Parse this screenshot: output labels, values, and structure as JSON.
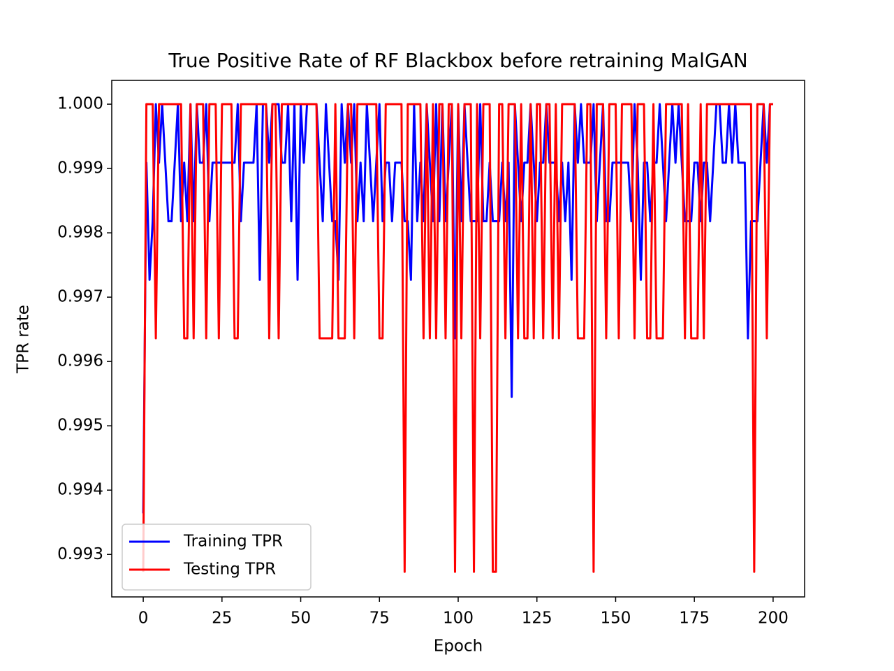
{
  "chart_data": {
    "type": "line",
    "title": "True Positive Rate of RF Blackbox before retraining MalGAN",
    "x_label": "Epoch",
    "y_label": "TPR rate",
    "xlim": [
      -10,
      210
    ],
    "xticks": [
      0,
      25,
      50,
      75,
      100,
      125,
      150,
      175,
      200
    ],
    "ylim": [
      0.99234,
      1.00037
    ],
    "yticks": [
      0.993,
      0.994,
      0.995,
      0.996,
      0.997,
      0.998,
      0.999,
      {
        "value": 1.0,
        "label": "1.000"
      }
    ],
    "legend": "lower left",
    "x": [
      0,
      1,
      2,
      3,
      4,
      5,
      6,
      7,
      8,
      9,
      10,
      11,
      12,
      13,
      14,
      15,
      16,
      17,
      18,
      19,
      20,
      21,
      22,
      23,
      24,
      25,
      26,
      27,
      28,
      29,
      30,
      31,
      32,
      33,
      34,
      35,
      36,
      37,
      38,
      39,
      40,
      41,
      42,
      43,
      44,
      45,
      46,
      47,
      48,
      49,
      50,
      51,
      52,
      53,
      54,
      55,
      56,
      57,
      58,
      59,
      60,
      61,
      62,
      63,
      64,
      65,
      66,
      67,
      68,
      69,
      70,
      71,
      72,
      73,
      74,
      75,
      76,
      77,
      78,
      79,
      80,
      81,
      82,
      83,
      84,
      85,
      86,
      87,
      88,
      89,
      90,
      91,
      92,
      93,
      94,
      95,
      96,
      97,
      98,
      99,
      100,
      101,
      102,
      103,
      104,
      105,
      106,
      107,
      108,
      109,
      110,
      111,
      112,
      113,
      114,
      115,
      116,
      117,
      118,
      119,
      120,
      121,
      122,
      123,
      124,
      125,
      126,
      127,
      128,
      129,
      130,
      131,
      132,
      133,
      134,
      135,
      136,
      137,
      138,
      139,
      140,
      141,
      142,
      143,
      144,
      145,
      146,
      147,
      148,
      149,
      150,
      151,
      152,
      153,
      154,
      155,
      156,
      157,
      158,
      159,
      160,
      161,
      162,
      163,
      164,
      165,
      166,
      167,
      168,
      169,
      170,
      171,
      172,
      173,
      174,
      175,
      176,
      177,
      178,
      179,
      180,
      181,
      182,
      183,
      184,
      185,
      186,
      187,
      188,
      189,
      190,
      191,
      192,
      193,
      194,
      195,
      196,
      197,
      198,
      199,
      200
    ],
    "series": [
      {
        "name": "Training TPR",
        "color": "#0000ff",
        "values": [
          0.99364,
          0.99909,
          0.99727,
          0.99818,
          1,
          0.99909,
          1,
          0.99909,
          0.99818,
          0.99818,
          0.99909,
          1,
          0.99818,
          0.99909,
          0.99818,
          1,
          0.99818,
          1,
          0.99909,
          0.99909,
          1,
          0.99818,
          0.99909,
          0.99909,
          0.99909,
          0.99909,
          0.99909,
          0.99909,
          0.99909,
          0.99909,
          1,
          0.99818,
          0.99909,
          0.99909,
          0.99909,
          0.99909,
          1,
          0.99727,
          1,
          1,
          0.99909,
          1,
          1,
          1,
          0.99909,
          0.99909,
          1,
          0.99818,
          1,
          0.99727,
          1,
          0.99909,
          1,
          1,
          1,
          1,
          0.99909,
          0.99818,
          1,
          0.99909,
          0.99818,
          0.99818,
          0.99727,
          1,
          0.99909,
          1,
          0.99909,
          1,
          0.99818,
          0.99909,
          0.99818,
          1,
          0.99909,
          0.99818,
          0.99909,
          1,
          0.99818,
          0.99909,
          0.99909,
          0.99818,
          0.99909,
          0.99909,
          0.99909,
          0.99818,
          0.99818,
          0.99727,
          1,
          0.99818,
          0.99909,
          0.99818,
          1,
          0.99909,
          0.99818,
          1,
          0.99818,
          1,
          0.99818,
          0.99909,
          1,
          0.99636,
          1,
          0.99818,
          1,
          0.99909,
          0.99818,
          0.99818,
          0.99818,
          1,
          0.99818,
          0.99818,
          0.99909,
          0.99818,
          0.99818,
          0.99818,
          0.99909,
          0.99818,
          0.99909,
          0.99545,
          1,
          0.99909,
          0.99818,
          0.99909,
          0.99909,
          1,
          0.99909,
          0.99818,
          0.99909,
          0.99909,
          1,
          0.99909,
          0.99909,
          0.99909,
          0.99818,
          0.99909,
          0.99818,
          0.99909,
          0.99727,
          1,
          0.99909,
          1,
          0.99909,
          0.99909,
          0.99909,
          1,
          0.99818,
          0.99909,
          1,
          0.99818,
          0.99818,
          0.99909,
          0.99909,
          0.99909,
          0.99909,
          0.99909,
          0.99909,
          0.99818,
          1,
          0.99909,
          0.99727,
          0.99909,
          0.99909,
          0.99818,
          0.99909,
          0.99909,
          1,
          0.99909,
          0.99818,
          0.99909,
          1,
          0.99909,
          1,
          0.99909,
          0.99818,
          0.99818,
          0.99818,
          0.99909,
          0.99909,
          0.99818,
          0.99909,
          0.99909,
          0.99818,
          0.99909,
          1,
          1,
          0.99909,
          0.99909,
          1,
          0.99909,
          1,
          0.99909,
          0.99909,
          0.99909,
          0.99636,
          0.99818,
          0.99818,
          0.99818,
          0.99909,
          1,
          0.99909,
          1,
          1
        ]
      },
      {
        "name": "Testing TPR",
        "color": "#ff0000",
        "values": [
          0.99273,
          1,
          1,
          1,
          0.99636,
          1,
          1,
          1,
          1,
          1,
          1,
          1,
          1,
          0.99636,
          0.99636,
          1,
          0.99636,
          1,
          1,
          1,
          0.99636,
          1,
          1,
          1,
          0.99636,
          1,
          1,
          1,
          1,
          0.99636,
          0.99636,
          1,
          1,
          1,
          1,
          1,
          1,
          1,
          1,
          1,
          0.99636,
          1,
          1,
          0.99636,
          1,
          1,
          1,
          1,
          1,
          1,
          1,
          1,
          1,
          1,
          1,
          1,
          0.99636,
          0.99636,
          0.99636,
          0.99636,
          0.99636,
          1,
          0.99636,
          0.99636,
          0.99636,
          1,
          1,
          0.99636,
          1,
          1,
          1,
          1,
          1,
          1,
          1,
          0.99636,
          0.99636,
          1,
          1,
          1,
          1,
          1,
          1,
          0.99273,
          1,
          1,
          1,
          1,
          1,
          0.99636,
          1,
          0.99636,
          1,
          0.99636,
          1,
          1,
          0.99636,
          1,
          1,
          0.99273,
          1,
          0.99636,
          1,
          1,
          1,
          0.99273,
          1,
          0.99636,
          1,
          1,
          1,
          0.99273,
          0.99273,
          1,
          1,
          0.99636,
          1,
          1,
          1,
          0.99636,
          1,
          0.99636,
          0.99636,
          1,
          0.99636,
          1,
          1,
          0.99636,
          1,
          1,
          0.99636,
          1,
          0.99636,
          1,
          1,
          1,
          1,
          1,
          0.99636,
          0.99636,
          0.99636,
          1,
          1,
          0.99273,
          1,
          1,
          1,
          0.99636,
          1,
          1,
          1,
          0.99636,
          1,
          1,
          1,
          1,
          0.99636,
          1,
          1,
          1,
          0.99636,
          0.99636,
          1,
          0.99636,
          0.99636,
          0.99636,
          1,
          1,
          1,
          1,
          1,
          1,
          0.99636,
          1,
          0.99636,
          0.99636,
          0.99636,
          1,
          0.99636,
          1,
          1,
          1,
          1,
          1,
          1,
          1,
          1,
          1,
          1,
          1,
          1,
          1,
          1,
          1,
          0.99273,
          1,
          1,
          1,
          0.99636,
          1,
          1
        ]
      }
    ]
  }
}
